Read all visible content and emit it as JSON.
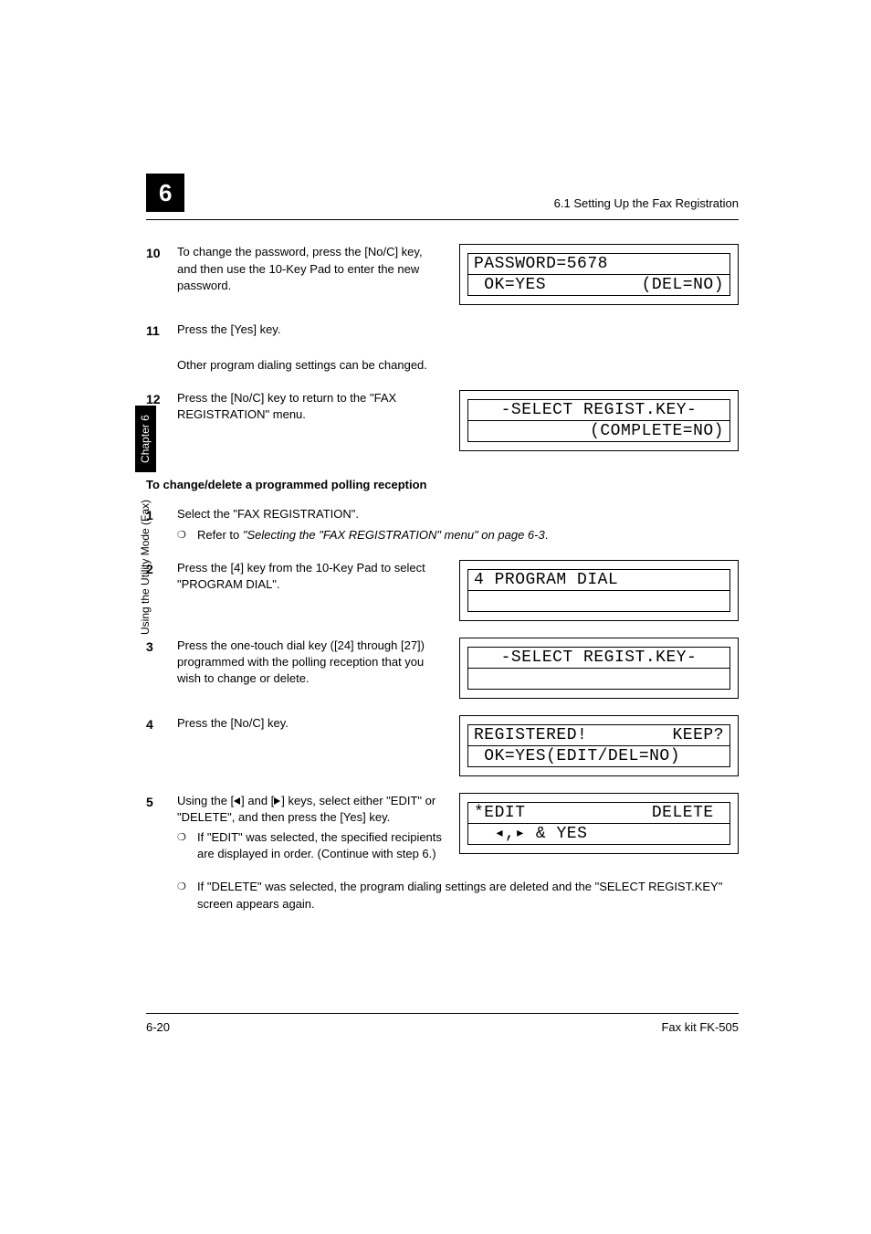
{
  "header": {
    "chapter_num": "6",
    "section_title": "6.1 Setting Up the Fax Registration"
  },
  "side_tab": {
    "mode_label": "Using the Utility Mode (Fax)",
    "chapter_label": "Chapter 6"
  },
  "steps_top": [
    {
      "num": "10",
      "text": "To change the password, press the [No/C] key, and then use the 10-Key Pad to enter the new password.",
      "lcd": {
        "line1_left": "PASSWORD=5678",
        "line1_right": "",
        "line2_left": " OK=YES",
        "line2_right": "(DEL=NO)"
      }
    },
    {
      "num": "11",
      "text": "Press the [Yes] key.",
      "sub_text": "Other program dialing settings can be changed."
    },
    {
      "num": "12",
      "text": "Press the [No/C] key to return to the \"FAX REGISTRATION\" menu.",
      "lcd": {
        "line1_center": "-SELECT REGIST.KEY-",
        "line2_right": "(COMPLETE=NO)"
      }
    }
  ],
  "section_heading": "To change/delete a programmed polling reception",
  "steps_bottom": [
    {
      "num": "1",
      "text": "Select the \"FAX REGISTRATION\".",
      "bullet_prefix": "Refer to ",
      "bullet_italic": "\"Selecting the \"FAX REGISTRATION\" menu\" on page 6-3",
      "bullet_suffix": "."
    },
    {
      "num": "2",
      "text": "Press the [4] key from the 10-Key Pad to select \"PROGRAM DIAL\".",
      "lcd": {
        "line1_single": "4 PROGRAM DIAL",
        "line2_single": " "
      }
    },
    {
      "num": "3",
      "text": "Press the one-touch dial key ([24] through [27]) programmed with the polling reception that you wish to change or delete.",
      "lcd": {
        "line1_center": "-SELECT REGIST.KEY-",
        "line2_single": " "
      }
    },
    {
      "num": "4",
      "text": "Press the [No/C] key.",
      "lcd": {
        "line1_left": "REGISTERED!",
        "line1_right": "KEEP?",
        "line2_left": " OK=YES(EDIT/DEL=NO)",
        "line2_right": ""
      }
    },
    {
      "num": "5",
      "text_pre": "Using the [",
      "text_mid": "] and [",
      "text_post": "] keys, select either \"EDIT\" or \"DELETE\", and then press the [Yes] key.",
      "lcd": {
        "line1_left": "*EDIT",
        "line1_right": "DELETE ",
        "line2_arrows": "& YES"
      },
      "bullets": [
        "If \"EDIT\" was selected, the specified recipients are displayed in order. (Continue with step 6.)",
        "If \"DELETE\" was selected, the program dialing settings are deleted and the \"SELECT REGIST.KEY\" screen appears again."
      ]
    }
  ],
  "footer": {
    "page": "6-20",
    "doc": "Fax kit FK-505"
  }
}
